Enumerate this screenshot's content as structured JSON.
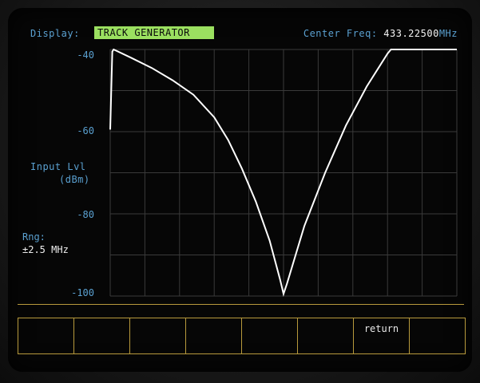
{
  "header": {
    "display_label": "Display:",
    "display_value": "TRACK GENERATOR",
    "center_freq_label": "Center Freq:",
    "center_freq_value": "433.22500",
    "center_freq_unit": "MHz"
  },
  "y_axis": {
    "label_line1": "Input Lvl",
    "label_line2": "(dBm)",
    "ticks": [
      "-40",
      "-60",
      "-80",
      "-100"
    ]
  },
  "range": {
    "label": "Rng:",
    "value": "±2.5 MHz"
  },
  "softkeys": [
    "",
    "",
    "",
    "",
    "",
    "",
    "return",
    ""
  ],
  "colors": {
    "label_blue": "#5aa0d0",
    "highlight_green": "#9be060",
    "trace": "#ffffff",
    "grid": "#3a3a3a",
    "softkey_border": "#b89a3c"
  },
  "chart_data": {
    "type": "line",
    "xlabel": "",
    "ylabel": "Input Lvl (dBm)",
    "ylim": [
      -100,
      -40
    ],
    "yticks": [
      -40,
      -60,
      -80,
      -100
    ],
    "x_span_mhz": [
      -2.5,
      2.5
    ],
    "grid": true,
    "series": [
      {
        "values_x_mhz": [
          -2.5,
          -2.47,
          -2.45,
          -2.2,
          -1.9,
          -1.6,
          -1.3,
          -1.0,
          -0.8,
          -0.6,
          -0.4,
          -0.2,
          -0.05,
          0.0,
          0.05,
          0.3,
          0.6,
          0.9,
          1.2,
          1.5,
          1.55,
          2.5
        ],
        "values_y_dbm": [
          -59.5,
          -40.5,
          -40.0,
          -42.0,
          -44.5,
          -47.5,
          -51.0,
          -56.5,
          -62.0,
          -69.0,
          -77.0,
          -86.5,
          -96.0,
          -99.5,
          -97.0,
          -83.0,
          -70.0,
          -58.5,
          -49.0,
          -41.0,
          -40.0,
          -40.0
        ]
      }
    ]
  }
}
